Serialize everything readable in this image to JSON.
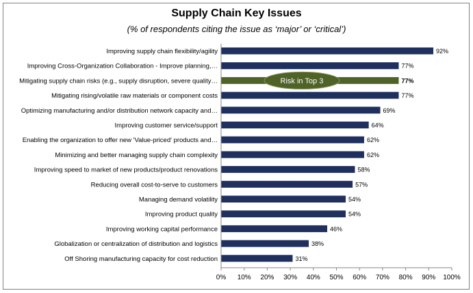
{
  "chart_data": {
    "type": "bar",
    "orientation": "horizontal",
    "title": "Supply Chain Key Issues",
    "subtitle": "(% of  respondents citing the issue as ‘major’ or ‘critical’)",
    "categories": [
      "Improving supply chain flexibility/agility",
      "Improving Cross-Organization Collaboration - Improve planning,…",
      "Mitigating supply chain risks (e.g., supply disruption, severe quality…",
      "Mitigating rising/volatile raw materials  or component costs",
      "Optimizing manufacturing and/or distribution network capacity and…",
      "Improving customer service/support",
      "Enabling the organization to offer new 'Value-priced' products and…",
      "Minimizing and better managing supply chain complexity",
      "Improving speed to market of new products/product renovations",
      "Reducing overall cost-to-serve to customers",
      "Managing demand volatility",
      "Improving product quality",
      "Improving working capital performance",
      "Globalization or centralization of distribution and logistics",
      "Off Shoring manufacturing capacity for cost reduction"
    ],
    "values": [
      92,
      77,
      77,
      77,
      69,
      64,
      62,
      62,
      58,
      57,
      54,
      54,
      46,
      38,
      31
    ],
    "value_labels": [
      "92%",
      "77%",
      "77%",
      "77%",
      "69%",
      "64%",
      "62%",
      "62%",
      "58%",
      "57%",
      "54%",
      "54%",
      "46%",
      "38%",
      "31%"
    ],
    "xlim": [
      0,
      100
    ],
    "xticks": [
      "0%",
      "10%",
      "20%",
      "30%",
      "40%",
      "50%",
      "60%",
      "70%",
      "80%",
      "90%",
      "100%"
    ],
    "grid": false,
    "highlight_index": 2,
    "annotation": "Risk in Top 3",
    "colors": {
      "bar": "#1f2f5e",
      "highlight_bar": "#4f6228",
      "callout": "#4f6228",
      "callout_border": "#8a9a5b"
    }
  }
}
